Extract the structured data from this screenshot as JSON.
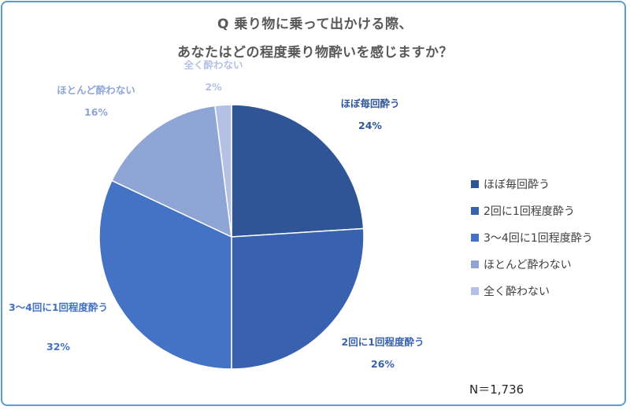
{
  "chart_data": {
    "type": "pie",
    "title_lines": [
      "Q 乗り物に乗って出かける際、",
      "あなたはどの程度乗り物酔いを感じますか？"
    ],
    "slices": [
      {
        "label": "ほぼ毎回酔う",
        "value": 24,
        "value_label": "24%",
        "color": "#2f5597"
      },
      {
        "label": "2回に1回程度酔う",
        "value": 26,
        "value_label": "26%",
        "color": "#3862b0"
      },
      {
        "label": "3〜4回に1回程度酔う",
        "value": 32,
        "value_label": "32%",
        "color": "#4472c4"
      },
      {
        "label": "ほとんど酔わない",
        "value": 16,
        "value_label": "16%",
        "color": "#8ea5d6"
      },
      {
        "label": "全く酔わない",
        "value": 2,
        "value_label": "2%",
        "color": "#b4c1e4"
      }
    ],
    "legend_position": "right",
    "note": "N＝1,736"
  }
}
